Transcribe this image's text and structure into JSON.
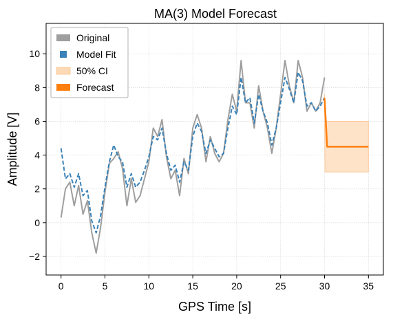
{
  "chart_data": {
    "type": "line",
    "title": "MA(3) Model Forecast",
    "xlabel": "GPS Time [s]",
    "ylabel": "Amplitude [V]",
    "xlim": [
      -1.7,
      36.7
    ],
    "ylim": [
      -3.1,
      11.8
    ],
    "xticks": [
      0,
      5,
      10,
      15,
      20,
      25,
      30,
      35
    ],
    "yticks": [
      -2,
      0,
      2,
      4,
      6,
      8,
      10
    ],
    "grid": true,
    "legend_position": "top-left",
    "series": [
      {
        "name": "Original",
        "style": "solid",
        "color": "#9e9e9e",
        "x": [
          0,
          0.5,
          1,
          1.5,
          2,
          2.5,
          3,
          3.5,
          4,
          4.5,
          5,
          5.5,
          6,
          6.5,
          7,
          7.5,
          8,
          8.5,
          9,
          9.5,
          10,
          10.5,
          11,
          11.5,
          12,
          12.5,
          13,
          13.5,
          14,
          14.5,
          15,
          15.5,
          16,
          16.5,
          17,
          17.5,
          18,
          18.5,
          19,
          19.5,
          20,
          20.5,
          21,
          21.5,
          22,
          22.5,
          23,
          23.5,
          24,
          24.5,
          25,
          25.5,
          26,
          26.5,
          27,
          27.5,
          28,
          28.5,
          29,
          29.5,
          30
        ],
        "values": [
          0.3,
          2.0,
          2.4,
          1.0,
          2.2,
          0.5,
          1.3,
          -0.6,
          -1.8,
          -0.3,
          1.8,
          3.5,
          3.8,
          4.2,
          3.2,
          1.0,
          2.6,
          1.2,
          1.6,
          2.6,
          3.6,
          5.6,
          5.1,
          6.1,
          3.9,
          2.6,
          3.1,
          1.6,
          3.8,
          2.9,
          5.6,
          6.4,
          5.6,
          3.6,
          5.1,
          4.1,
          3.6,
          4.1,
          6.1,
          7.6,
          6.6,
          9.6,
          7.1,
          7.1,
          5.6,
          8.1,
          6.6,
          5.6,
          4.1,
          5.6,
          7.6,
          9.6,
          8.1,
          7.1,
          9.6,
          8.6,
          6.6,
          7.1,
          6.6,
          7.1,
          8.6
        ]
      },
      {
        "name": "Model Fit",
        "style": "dashed",
        "color": "#3a82b7",
        "x": [
          0,
          0.5,
          1,
          1.5,
          2,
          2.5,
          3,
          3.5,
          4,
          4.5,
          5,
          5.5,
          6,
          6.5,
          7,
          7.5,
          8,
          8.5,
          9,
          9.5,
          10,
          10.5,
          11,
          11.5,
          12,
          12.5,
          13,
          13.5,
          14,
          14.5,
          15,
          15.5,
          16,
          16.5,
          17,
          17.5,
          18,
          18.5,
          19,
          19.5,
          20,
          20.5,
          21,
          21.5,
          22,
          22.5,
          23,
          23.5,
          24,
          24.5,
          25,
          25.5,
          26,
          26.5,
          27,
          27.5,
          28,
          28.5,
          29,
          29.5,
          30
        ],
        "values": [
          4.4,
          2.6,
          2.9,
          2.1,
          2.9,
          1.6,
          1.9,
          0.1,
          -0.6,
          0.4,
          2.1,
          3.6,
          4.6,
          3.9,
          3.6,
          2.1,
          2.9,
          2.1,
          2.4,
          3.1,
          3.9,
          5.1,
          4.9,
          5.6,
          4.1,
          3.1,
          3.4,
          2.4,
          3.6,
          3.1,
          5.1,
          5.9,
          5.4,
          4.1,
          4.9,
          4.4,
          3.9,
          4.1,
          5.6,
          6.9,
          6.4,
          8.6,
          7.1,
          7.4,
          5.9,
          7.6,
          6.6,
          5.9,
          4.6,
          5.6,
          7.1,
          8.6,
          7.9,
          7.1,
          8.9,
          8.4,
          6.9,
          7.1,
          6.6,
          6.9,
          7.4
        ]
      },
      {
        "name": "50% CI",
        "style": "band",
        "color": "#fdd9b5",
        "x": [
          30,
          30.05,
          35
        ],
        "lower": [
          7.0,
          3.0,
          3.0
        ],
        "upper": [
          7.6,
          6.0,
          6.0
        ]
      },
      {
        "name": "Forecast",
        "style": "solid",
        "color": "#ff7f0e",
        "x": [
          30,
          30.3,
          35
        ],
        "values": [
          7.4,
          4.5,
          4.5
        ]
      }
    ]
  }
}
